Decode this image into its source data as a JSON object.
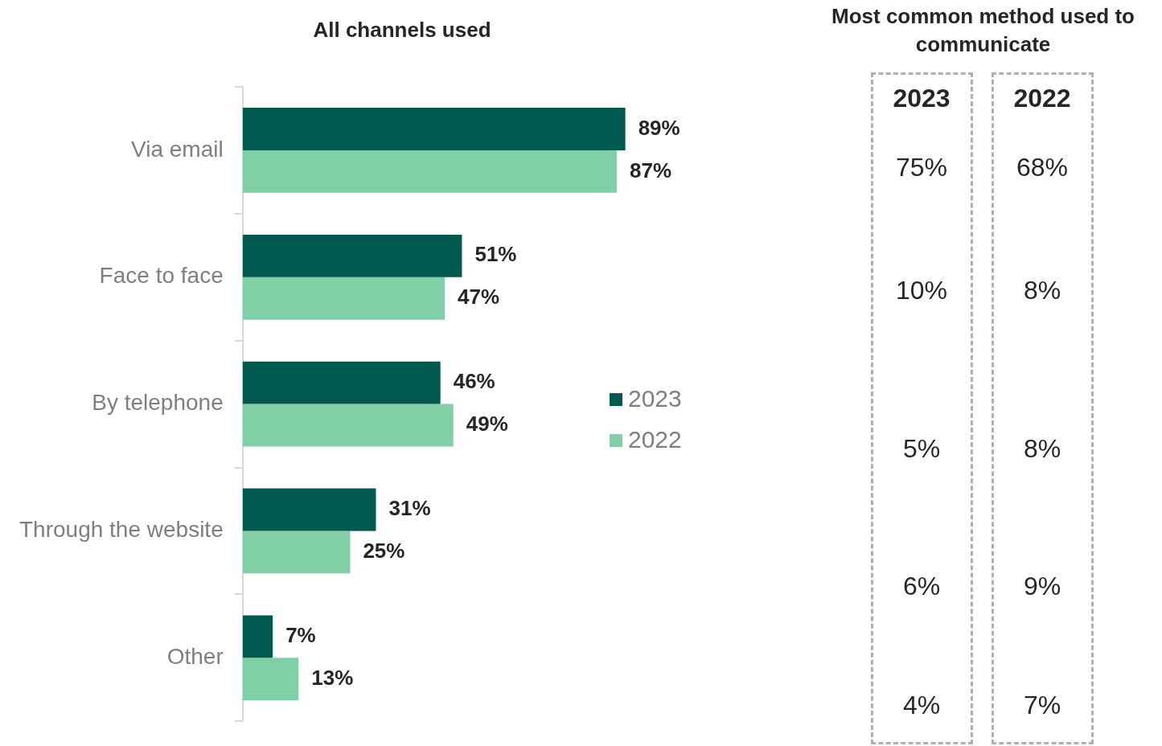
{
  "chart_data": [
    {
      "type": "bar",
      "orientation": "horizontal",
      "title": "All channels used",
      "categories": [
        "Via email",
        "Face to face",
        "By telephone",
        "Through the website",
        "Other"
      ],
      "legend": "right",
      "series": [
        {
          "name": "2023",
          "color": "#005a50",
          "values": [
            89,
            51,
            46,
            31,
            7
          ],
          "value_labels": [
            "89%",
            "51%",
            "46%",
            "31%",
            "7%"
          ]
        },
        {
          "name": "2022",
          "color": "#80cfa6",
          "values": [
            87,
            47,
            49,
            25,
            13
          ],
          "value_labels": [
            "87%",
            "47%",
            "49%",
            "25%",
            "13%"
          ]
        }
      ]
    },
    {
      "type": "heatmap",
      "title": "Most common method used to communicate",
      "categories": [
        "2023",
        "2022"
      ],
      "y_categories": [
        null,
        null,
        null,
        null,
        null
      ],
      "cells": [
        [
          75,
          68
        ],
        [
          10,
          8
        ],
        [
          5,
          8
        ],
        [
          6,
          9
        ],
        [
          4,
          7
        ]
      ],
      "cell_labels": [
        [
          "75%",
          "68%"
        ],
        [
          "10%",
          "8%"
        ],
        [
          "5%",
          "8%"
        ],
        [
          "6%",
          "9%"
        ],
        [
          "4%",
          "7%"
        ]
      ]
    }
  ]
}
